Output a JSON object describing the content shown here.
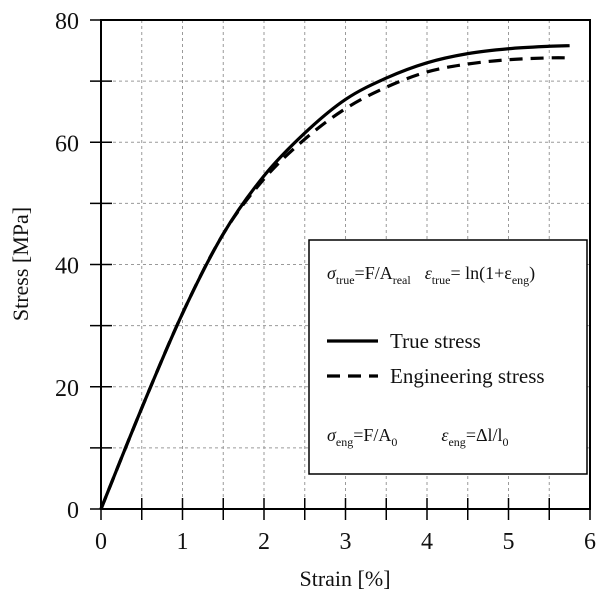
{
  "chart_data": {
    "type": "line",
    "xlabel": "Strain [%]",
    "ylabel": "Stress [MPa]",
    "xlim": [
      0,
      6
    ],
    "ylim": [
      0,
      80
    ],
    "xticks": [
      0,
      1,
      2,
      3,
      4,
      5,
      6
    ],
    "yticks": [
      0,
      20,
      40,
      60,
      80
    ],
    "grid": true,
    "legend_position": "center-right",
    "series": [
      {
        "name": "True stress",
        "style": "solid",
        "color": "#000000",
        "x": [
          0,
          0.5,
          1.0,
          1.5,
          2.0,
          2.5,
          3.0,
          3.5,
          4.0,
          4.5,
          5.0,
          5.5,
          5.75
        ],
        "y": [
          0,
          16.5,
          32.0,
          45.0,
          54.5,
          61.5,
          67.0,
          70.5,
          73.0,
          74.5,
          75.3,
          75.7,
          75.8
        ]
      },
      {
        "name": "Engineering stress",
        "style": "dashed",
        "color": "#000000",
        "x": [
          0,
          0.5,
          1.0,
          1.5,
          2.0,
          2.5,
          3.0,
          3.5,
          4.0,
          4.5,
          5.0,
          5.5,
          5.75
        ],
        "y": [
          0,
          16.5,
          32.0,
          45.0,
          54.0,
          60.5,
          65.5,
          69.0,
          71.5,
          72.8,
          73.5,
          73.8,
          73.8
        ]
      }
    ],
    "annotations": {
      "true_formula": {
        "sigma": "σ",
        "sub1": "true",
        "eq1": "=F/A",
        "sub2": "real",
        "eps": "ε",
        "sub3": "true",
        "eq2": "= ln(1+ε",
        "sub4": "eng",
        "close": ")"
      },
      "eng_formula": {
        "sigma": "σ",
        "sub1": "eng",
        "eq1": "=F/A",
        "sub2": "0",
        "eps": "ε",
        "sub3": "eng",
        "eq2": "=Δl/l",
        "sub4": "0"
      }
    }
  }
}
